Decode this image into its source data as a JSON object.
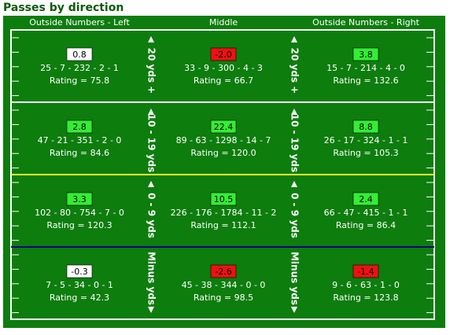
{
  "header": {
    "title": "Passes by direction"
  },
  "columns": [
    "Outside Numbers - Left",
    "Middle",
    "Outside Numbers - Right"
  ],
  "rows": [
    {
      "label": "20 yds +",
      "cells": [
        {
          "value": "0.8",
          "color": "#ffffff",
          "stats": "25 - 7 - 232 - 2 - 1",
          "rating": "Rating = 75.8"
        },
        {
          "value": "-2.0",
          "color": "#ee1111",
          "stats": "33 - 9 - 300 - 4 - 3",
          "rating": "Rating = 66.7"
        },
        {
          "value": "3.8",
          "color": "#33ee33",
          "stats": "15 - 7 - 214 - 4 - 0",
          "rating": "Rating = 132.6"
        }
      ]
    },
    {
      "label": "10 - 19 yds",
      "cells": [
        {
          "value": "2.8",
          "color": "#33ee33",
          "stats": "47 - 21 - 351 - 2 - 0",
          "rating": "Rating = 84.6"
        },
        {
          "value": "22.4",
          "color": "#33ee33",
          "stats": "89 - 63 - 1298 - 14 - 7",
          "rating": "Rating = 120.0"
        },
        {
          "value": "8.8",
          "color": "#33ee33",
          "stats": "26 - 17 - 324 - 1 - 1",
          "rating": "Rating = 105.3"
        }
      ]
    },
    {
      "label": "0 - 9 yds",
      "cells": [
        {
          "value": "3.3",
          "color": "#33ee33",
          "stats": "102 - 80 - 754 - 7 - 0",
          "rating": "Rating = 120.3"
        },
        {
          "value": "10.5",
          "color": "#33ee33",
          "stats": "226 - 176 - 1784 - 11 - 2",
          "rating": "Rating = 112.1"
        },
        {
          "value": "2.4",
          "color": "#33ee33",
          "stats": "66 - 47 - 415 - 1 - 1",
          "rating": "Rating = 86.4"
        }
      ]
    },
    {
      "label": "Minus yds",
      "cells": [
        {
          "value": "-0.3",
          "color": "#ffffff",
          "stats": "7 - 5 - 34 - 0 - 1",
          "rating": "Rating = 42.3"
        },
        {
          "value": "-2.6",
          "color": "#ee1111",
          "stats": "45 - 38 - 344 - 0 - 0",
          "rating": "Rating = 98.5"
        },
        {
          "value": "-1.4",
          "color": "#ee1111",
          "stats": "9 - 6 - 63 - 1 - 0",
          "rating": "Rating = 123.8"
        }
      ]
    }
  ]
}
